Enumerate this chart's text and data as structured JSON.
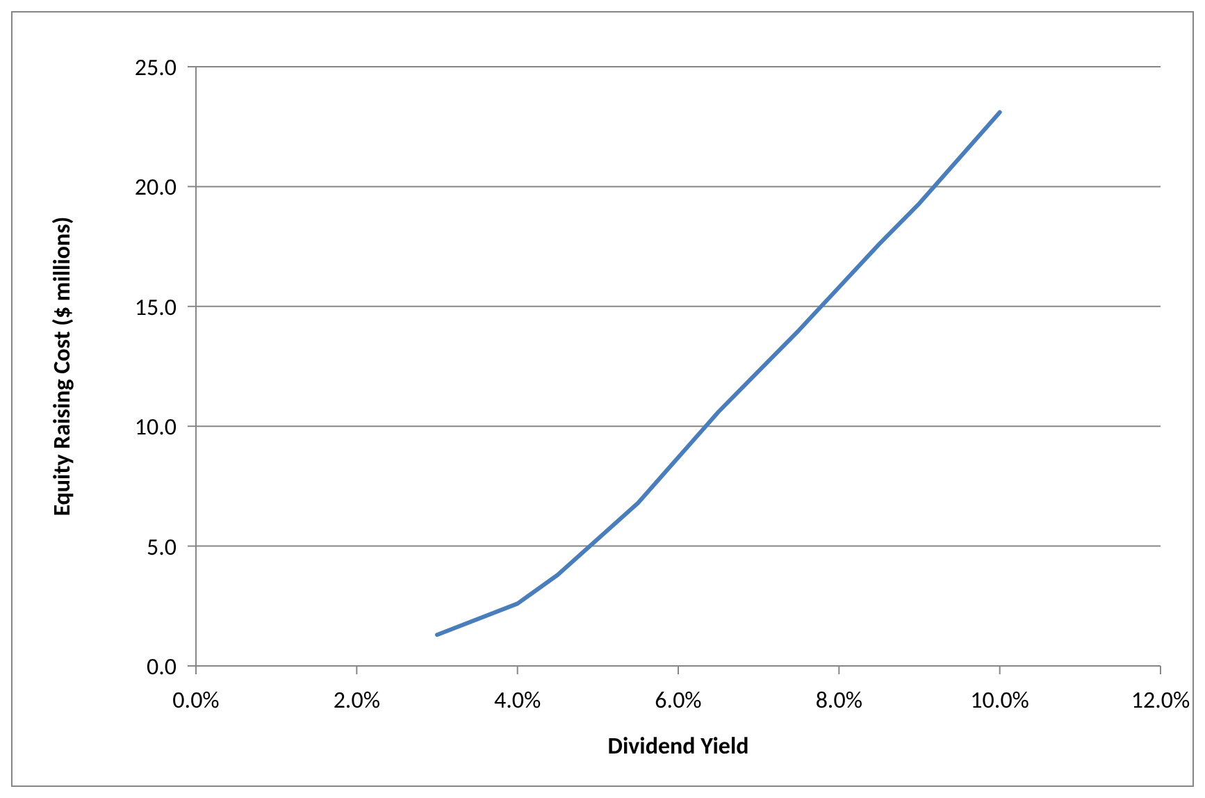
{
  "chart_data": {
    "type": "line",
    "xlabel": "Dividend Yield",
    "ylabel": "Equity Raising Cost ($ millions)",
    "series": [
      {
        "color": "#4a7ebb",
        "x": [
          3,
          4,
          4.5,
          5,
          5.5,
          6,
          6.5,
          7,
          7.5,
          8,
          8.5,
          9,
          10
        ],
        "values": [
          1.3,
          2.6,
          3.8,
          5.3,
          6.8,
          8.7,
          10.6,
          12.3,
          14.0,
          15.8,
          17.6,
          19.3,
          23.1
        ]
      }
    ],
    "xlim": [
      0,
      12
    ],
    "xticks": [
      {
        "value": 0,
        "label": "0.0%"
      },
      {
        "value": 2,
        "label": "2.0%"
      },
      {
        "value": 4,
        "label": "4.0%"
      },
      {
        "value": 6,
        "label": "6.0%"
      },
      {
        "value": 8,
        "label": "8.0%"
      },
      {
        "value": 10,
        "label": "10.0%"
      },
      {
        "value": 12,
        "label": "12.0%"
      }
    ],
    "ylim": [
      0,
      25
    ],
    "yticks": [
      {
        "value": 0,
        "label": "0.0"
      },
      {
        "value": 5,
        "label": "5.0"
      },
      {
        "value": 10,
        "label": "10.0"
      },
      {
        "value": 15,
        "label": "15.0"
      },
      {
        "value": 20,
        "label": "20.0"
      },
      {
        "value": 25,
        "label": "25.0"
      }
    ],
    "grid": "y",
    "marker": "none",
    "line_style": "solid"
  }
}
